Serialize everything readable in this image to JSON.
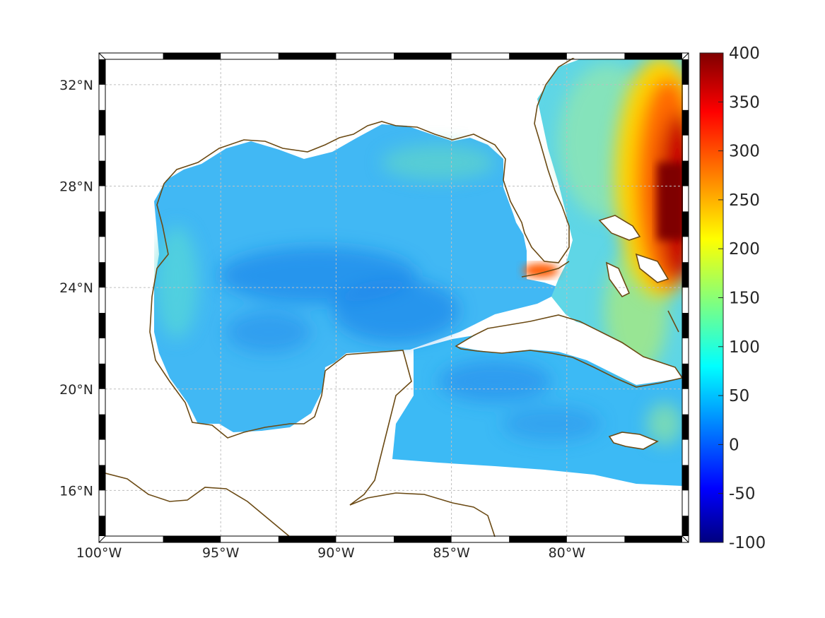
{
  "chart_data": {
    "type": "heatmap",
    "title": "",
    "xlabel": "",
    "ylabel": "",
    "projection": "map",
    "lon_range": [
      -100,
      -75
    ],
    "lat_range": [
      14.2,
      33
    ],
    "x_ticks": [
      {
        "value": -100,
        "label": "100°W"
      },
      {
        "value": -95,
        "label": "95°W"
      },
      {
        "value": -90,
        "label": "90°W"
      },
      {
        "value": -85,
        "label": "85°W"
      },
      {
        "value": -80,
        "label": "80°W"
      }
    ],
    "y_ticks": [
      {
        "value": 16,
        "label": "16°N"
      },
      {
        "value": 20,
        "label": "20°N"
      },
      {
        "value": 24,
        "label": "24°N"
      },
      {
        "value": 28,
        "label": "28°N"
      },
      {
        "value": 32,
        "label": "32°N"
      }
    ],
    "grid": true,
    "colorbar": {
      "min": -100,
      "max": 400,
      "colormap": "jet",
      "ticks": [
        "400",
        "350",
        "300",
        "250",
        "200",
        "150",
        "100",
        "50",
        "0",
        "-50",
        "-100"
      ]
    },
    "field_description_values": {
      "gulf_interior_typical": 60,
      "gulf_shelf_typical": 100,
      "caribbean_typical": 75,
      "florida_straits_peak": 280,
      "gulf_stream_core_max": 400
    },
    "colors": {
      "coast": "#6b4a14",
      "grid": "#bfbfbf",
      "frame": "#000000"
    }
  }
}
